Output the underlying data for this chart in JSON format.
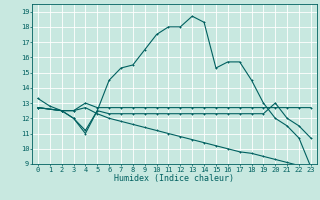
{
  "xlabel": "Humidex (Indice chaleur)",
  "bg_color": "#c8e8e0",
  "grid_color": "#ffffff",
  "line_color": "#006060",
  "xlim": [
    -0.5,
    23.5
  ],
  "ylim": [
    9,
    19.5
  ],
  "xticks": [
    0,
    1,
    2,
    3,
    4,
    5,
    6,
    7,
    8,
    9,
    10,
    11,
    12,
    13,
    14,
    15,
    16,
    17,
    18,
    19,
    20,
    21,
    22,
    23
  ],
  "yticks": [
    9,
    10,
    11,
    12,
    13,
    14,
    15,
    16,
    17,
    18,
    19
  ],
  "line1_x": [
    0,
    1,
    2,
    3,
    4,
    5,
    6,
    7,
    8,
    9,
    10,
    11,
    12,
    13,
    14,
    15,
    16,
    17,
    18,
    19,
    20,
    21,
    22,
    23
  ],
  "line1_y": [
    13.3,
    12.8,
    12.5,
    12.0,
    11.2,
    12.5,
    14.5,
    15.3,
    15.5,
    16.5,
    17.5,
    18.0,
    18.0,
    18.7,
    18.3,
    15.3,
    15.7,
    15.7,
    14.5,
    13.0,
    12.0,
    11.5,
    10.7,
    8.8
  ],
  "line2_x": [
    0,
    2,
    3,
    4,
    5,
    6,
    7,
    8,
    9,
    10,
    11,
    12,
    13,
    14,
    15,
    16,
    17,
    18,
    19,
    20,
    21,
    22,
    23
  ],
  "line2_y": [
    12.7,
    12.5,
    12.5,
    13.0,
    12.7,
    12.7,
    12.7,
    12.7,
    12.7,
    12.7,
    12.7,
    12.7,
    12.7,
    12.7,
    12.7,
    12.7,
    12.7,
    12.7,
    12.7,
    12.7,
    12.7,
    12.7,
    12.7
  ],
  "line3_x": [
    0,
    2,
    3,
    4,
    5,
    6,
    7,
    8,
    9,
    10,
    11,
    12,
    13,
    14,
    15,
    16,
    17,
    18,
    19,
    20,
    21,
    22,
    23
  ],
  "line3_y": [
    12.7,
    12.5,
    12.0,
    11.0,
    12.5,
    12.3,
    12.3,
    12.3,
    12.3,
    12.3,
    12.3,
    12.3,
    12.3,
    12.3,
    12.3,
    12.3,
    12.3,
    12.3,
    12.3,
    13.0,
    12.0,
    11.5,
    10.7
  ],
  "line4_x": [
    0,
    2,
    3,
    4,
    5,
    6,
    7,
    8,
    9,
    10,
    11,
    12,
    13,
    14,
    15,
    16,
    17,
    18,
    19,
    20,
    21,
    22,
    23
  ],
  "line4_y": [
    12.7,
    12.5,
    12.5,
    12.7,
    12.3,
    12.0,
    11.8,
    11.6,
    11.4,
    11.2,
    11.0,
    10.8,
    10.6,
    10.4,
    10.2,
    10.0,
    9.8,
    9.7,
    9.5,
    9.3,
    9.1,
    8.9,
    8.7
  ]
}
